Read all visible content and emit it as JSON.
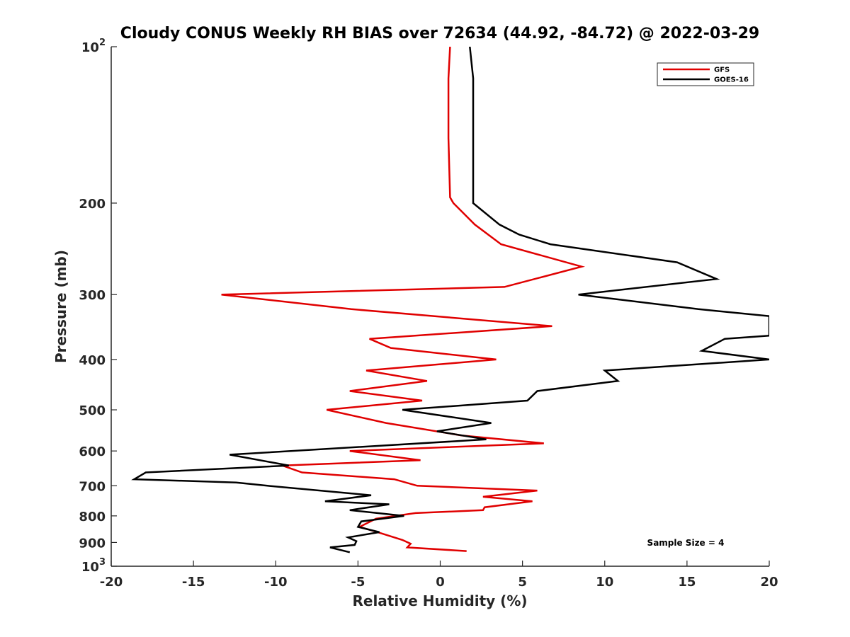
{
  "chart_data": {
    "type": "line",
    "title": "Cloudy CONUS Weekly RH BIAS over 72634 (44.92, -84.72) @ 2022-03-29",
    "xlabel": "Relative Humidity (%)",
    "ylabel": "Pressure (mb)",
    "xlim": [
      -20,
      20
    ],
    "ylim": [
      100,
      1000
    ],
    "y_scale": "log",
    "y_reversed": true,
    "x_ticks": [
      "-20",
      "-15",
      "-10",
      "-5",
      "0",
      "5",
      "10",
      "15",
      "20"
    ],
    "y_ticks": [
      {
        "value": 100,
        "base": "10",
        "exp": "2"
      },
      {
        "value": 200,
        "label": "200"
      },
      {
        "value": 300,
        "label": "300"
      },
      {
        "value": 400,
        "label": "400"
      },
      {
        "value": 500,
        "label": "500"
      },
      {
        "value": 600,
        "label": "600"
      },
      {
        "value": 700,
        "label": "700"
      },
      {
        "value": 800,
        "label": "800"
      },
      {
        "value": 900,
        "label": "900"
      },
      {
        "value": 1000,
        "base": "10",
        "exp": "3"
      }
    ],
    "grid": false,
    "legend_position": "top-right",
    "annotation": "Sample Size = 4",
    "series": [
      {
        "name": "GFS",
        "color": "#e00000",
        "points": [
          [
            0.6,
            100
          ],
          [
            0.5,
            115
          ],
          [
            0.5,
            150
          ],
          [
            0.6,
            195
          ],
          [
            0.8,
            200
          ],
          [
            2.1,
            220
          ],
          [
            3.7,
            240
          ],
          [
            8.6,
            265
          ],
          [
            3.9,
            290
          ],
          [
            -13.3,
            300
          ],
          [
            -5.4,
            320
          ],
          [
            6.8,
            345
          ],
          [
            -4.3,
            365
          ],
          [
            -3.0,
            380
          ],
          [
            3.4,
            400
          ],
          [
            -4.5,
            420
          ],
          [
            -0.8,
            440
          ],
          [
            -5.5,
            460
          ],
          [
            -1.1,
            480
          ],
          [
            -6.9,
            500
          ],
          [
            -3.3,
            530
          ],
          [
            1.3,
            560
          ],
          [
            6.3,
            580
          ],
          [
            -5.5,
            600
          ],
          [
            -1.2,
            625
          ],
          [
            -9.6,
            640
          ],
          [
            -8.4,
            660
          ],
          [
            -2.8,
            680
          ],
          [
            -1.4,
            700
          ],
          [
            5.9,
            715
          ],
          [
            2.6,
            735
          ],
          [
            5.6,
            750
          ],
          [
            2.7,
            770
          ],
          [
            2.6,
            780
          ],
          [
            -1.5,
            790
          ],
          [
            -3.9,
            810
          ],
          [
            -4.9,
            840
          ],
          [
            -3.8,
            860
          ],
          [
            -2.3,
            890
          ],
          [
            -1.8,
            905
          ],
          [
            -2.0,
            920
          ],
          [
            1.6,
            935
          ]
        ]
      },
      {
        "name": "GOES-16",
        "color": "#000000",
        "points": [
          [
            1.8,
            100
          ],
          [
            2.0,
            115
          ],
          [
            2.0,
            150
          ],
          [
            2.0,
            195
          ],
          [
            2.0,
            200
          ],
          [
            3.6,
            220
          ],
          [
            4.8,
            230
          ],
          [
            6.7,
            240
          ],
          [
            14.4,
            260
          ],
          [
            16.8,
            280
          ],
          [
            8.4,
            300
          ],
          [
            15.7,
            320
          ],
          [
            20.0,
            330
          ],
          [
            20.0,
            360
          ],
          [
            17.3,
            365
          ],
          [
            15.9,
            385
          ],
          [
            20.0,
            400
          ],
          [
            10.0,
            420
          ],
          [
            10.8,
            440
          ],
          [
            5.9,
            460
          ],
          [
            5.3,
            480
          ],
          [
            -2.3,
            500
          ],
          [
            3.1,
            530
          ],
          [
            -0.2,
            550
          ],
          [
            2.8,
            570
          ],
          [
            -12.8,
            610
          ],
          [
            -9.2,
            640
          ],
          [
            -17.9,
            660
          ],
          [
            -18.6,
            680
          ],
          [
            -12.4,
            690
          ],
          [
            -10.5,
            700
          ],
          [
            -4.2,
            730
          ],
          [
            -7.0,
            750
          ],
          [
            -3.1,
            760
          ],
          [
            -5.5,
            780
          ],
          [
            -2.2,
            800
          ],
          [
            -4.8,
            820
          ],
          [
            -5.0,
            840
          ],
          [
            -3.7,
            860
          ],
          [
            -5.6,
            880
          ],
          [
            -5.1,
            895
          ],
          [
            -5.2,
            910
          ],
          [
            -6.7,
            920
          ],
          [
            -5.5,
            940
          ]
        ]
      }
    ]
  }
}
